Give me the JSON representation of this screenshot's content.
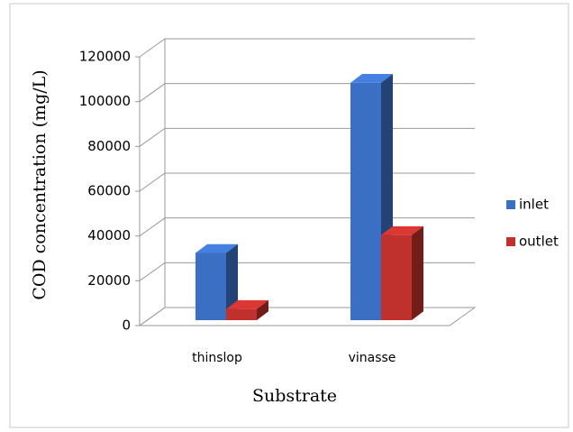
{
  "chart_data": {
    "type": "bar3d",
    "x_label": "Substrate",
    "y_label": "COD concentration (mg/L)",
    "categories": [
      "thinslop",
      "vinasse"
    ],
    "series": [
      {
        "name": "inlet",
        "color": "#3b6fc4",
        "values": [
          30000,
          106000
        ]
      },
      {
        "name": "outlet",
        "color": "#c0302c",
        "values": [
          5000,
          38000
        ]
      }
    ],
    "ylim": [
      0,
      120000
    ],
    "yticks": [
      0,
      20000,
      40000,
      60000,
      80000,
      100000,
      120000
    ],
    "grid": true,
    "legend": "right"
  }
}
